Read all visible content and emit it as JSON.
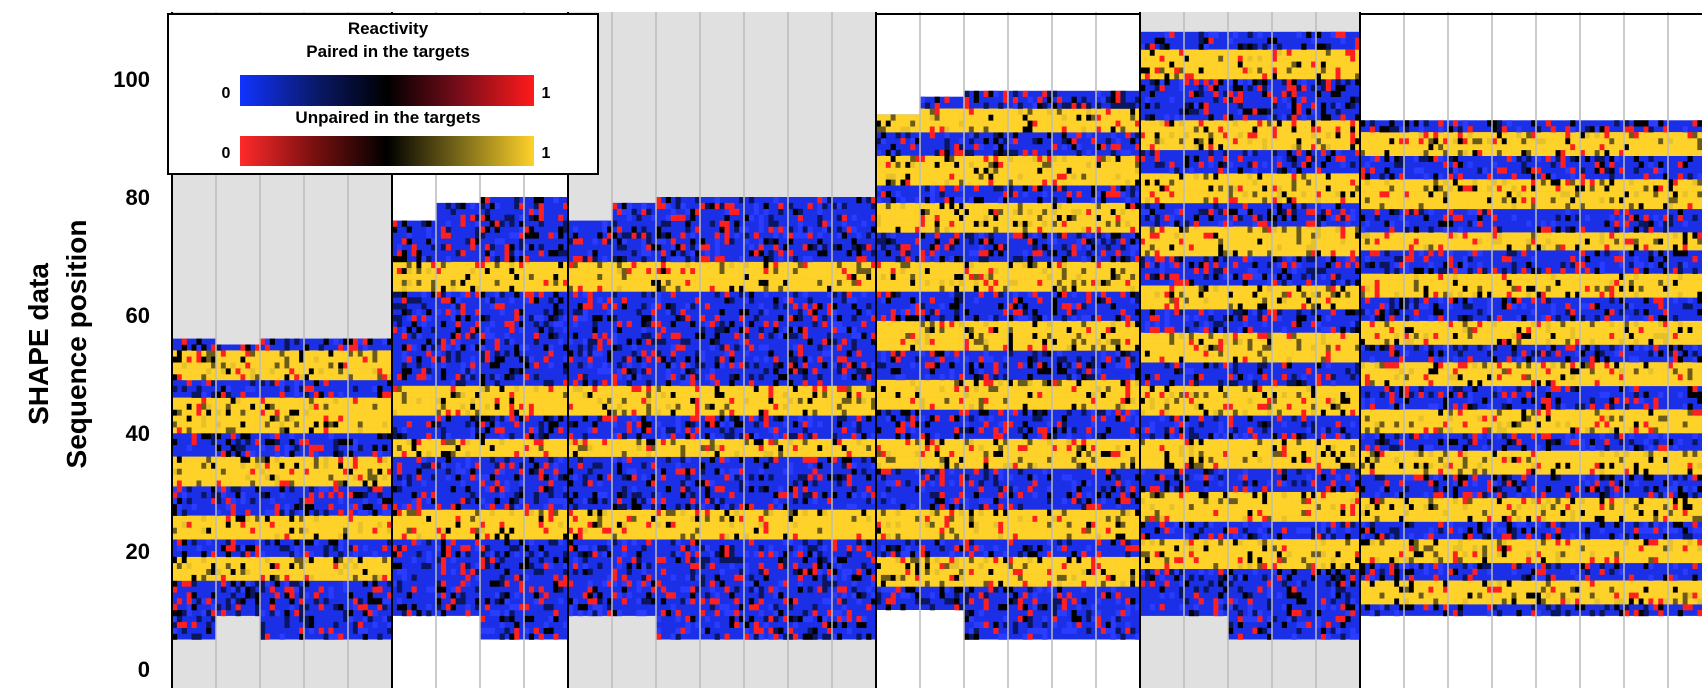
{
  "chart_data": {
    "type": "heatmap",
    "ylabel_line1": "SHAPE data",
    "ylabel_line2": "Sequence position",
    "ylim": [
      0,
      110
    ],
    "yticks": [
      0,
      20,
      40,
      60,
      80,
      100
    ],
    "legend": {
      "title": "Reactivity",
      "paired_label": "Paired in the targets",
      "unpaired_label": "Unpaired in the targets",
      "scale_min": "0",
      "scale_max": "1",
      "paired_colors": [
        "#1133ff",
        "#0a1a6e",
        "#000000",
        "#7a0d1a",
        "#ff1a1a"
      ],
      "unpaired_colors": [
        "#ff2a2a",
        "#7a1010",
        "#000000",
        "#7a6a1a",
        "#ffd12a"
      ],
      "placement": "top-left"
    },
    "colors": {
      "paired_low": "#1a2fe6",
      "paired_high": "#ff1f1f",
      "unpaired_low": "#ff1f1f",
      "unpaired_high": "#ffd22a",
      "group_background": "#e0e0e0"
    },
    "groups": [
      {
        "shaded": true,
        "lanes": [
          {
            "start": 5,
            "end": 56
          },
          {
            "start": 9,
            "end": 55
          },
          {
            "start": 5,
            "end": 56
          },
          {
            "start": 5,
            "end": 56
          },
          {
            "start": 5,
            "end": 56
          }
        ],
        "unpaired": [
          [
            49,
            53
          ],
          [
            40,
            45
          ],
          [
            31,
            35
          ],
          [
            22,
            25
          ],
          [
            15,
            18
          ]
        ]
      },
      {
        "shaded": false,
        "lanes": [
          {
            "start": 9,
            "end": 76
          },
          {
            "start": 9,
            "end": 79
          },
          {
            "start": 5,
            "end": 80
          },
          {
            "start": 5,
            "end": 80
          }
        ],
        "unpaired": [
          [
            64,
            68
          ],
          [
            43,
            47
          ],
          [
            36,
            38
          ],
          [
            22,
            26
          ]
        ]
      },
      {
        "shaded": true,
        "lanes": [
          {
            "start": 9,
            "end": 76
          },
          {
            "start": 9,
            "end": 79
          },
          {
            "start": 5,
            "end": 80
          },
          {
            "start": 5,
            "end": 80
          },
          {
            "start": 5,
            "end": 80
          },
          {
            "start": 5,
            "end": 80
          },
          {
            "start": 5,
            "end": 80
          }
        ],
        "unpaired": [
          [
            64,
            68
          ],
          [
            43,
            47
          ],
          [
            36,
            38
          ],
          [
            22,
            26
          ]
        ]
      },
      {
        "shaded": false,
        "lanes": [
          {
            "start": 10,
            "end": 94
          },
          {
            "start": 10,
            "end": 97
          },
          {
            "start": 5,
            "end": 98
          },
          {
            "start": 5,
            "end": 98
          },
          {
            "start": 5,
            "end": 98
          },
          {
            "start": 5,
            "end": 98
          }
        ],
        "unpaired": [
          [
            91,
            94
          ],
          [
            82,
            86
          ],
          [
            74,
            78
          ],
          [
            64,
            68
          ],
          [
            54,
            58
          ],
          [
            44,
            48
          ],
          [
            34,
            38
          ],
          [
            22,
            26
          ],
          [
            14,
            18
          ]
        ]
      },
      {
        "shaded": true,
        "lanes": [
          {
            "start": 9,
            "end": 108
          },
          {
            "start": 9,
            "end": 108
          },
          {
            "start": 5,
            "end": 108
          },
          {
            "start": 5,
            "end": 108
          },
          {
            "start": 5,
            "end": 108
          }
        ],
        "unpaired": [
          [
            100,
            104
          ],
          [
            88,
            92
          ],
          [
            79,
            83
          ],
          [
            70,
            74
          ],
          [
            61,
            64
          ],
          [
            52,
            56
          ],
          [
            43,
            47
          ],
          [
            34,
            38
          ],
          [
            25,
            29
          ],
          [
            17,
            21
          ]
        ]
      },
      {
        "shaded": false,
        "lanes": [
          {
            "start": 9,
            "end": 93
          },
          {
            "start": 9,
            "end": 93
          },
          {
            "start": 9,
            "end": 93
          },
          {
            "start": 9,
            "end": 93
          },
          {
            "start": 9,
            "end": 93
          },
          {
            "start": 9,
            "end": 93
          },
          {
            "start": 9,
            "end": 93
          },
          {
            "start": 9,
            "end": 93
          }
        ],
        "unpaired": [
          [
            87,
            90
          ],
          [
            78,
            82
          ],
          [
            71,
            73
          ],
          [
            63,
            66
          ],
          [
            55,
            58
          ],
          [
            48,
            51
          ],
          [
            40,
            43
          ],
          [
            33,
            36
          ],
          [
            25,
            28
          ],
          [
            18,
            21
          ],
          [
            11,
            14
          ]
        ]
      }
    ]
  }
}
